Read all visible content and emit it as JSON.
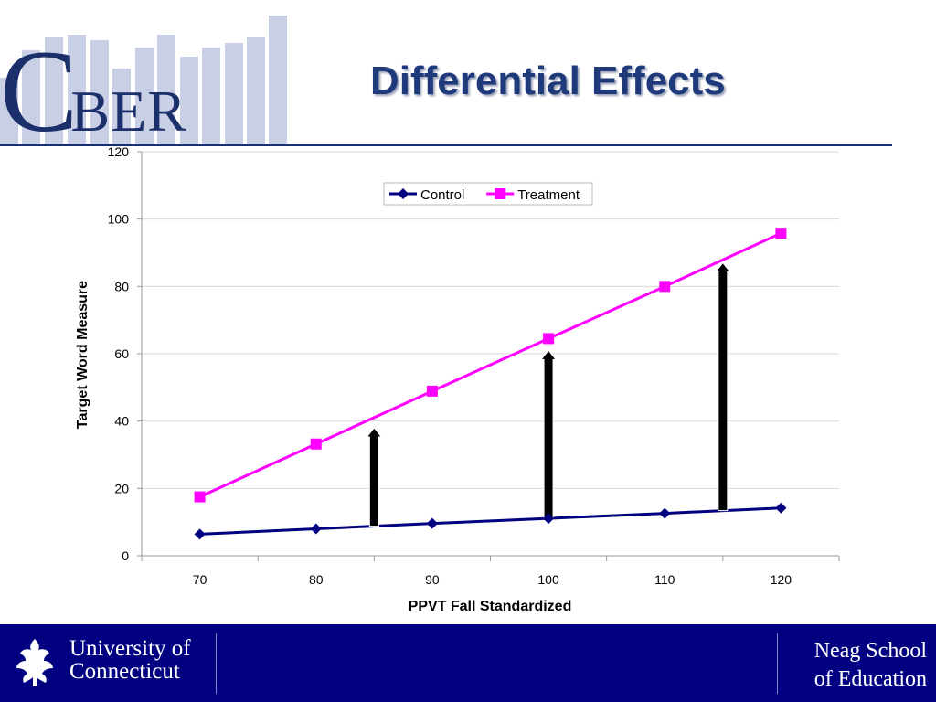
{
  "header": {
    "logo_c": "C",
    "logo_rest": "BER",
    "title": "Differential Effects"
  },
  "colors": {
    "navy": "#1b2f6b",
    "control": "#000080",
    "treatment": "#ff00ff",
    "footer_bg": "#000080"
  },
  "chart_data": {
    "type": "line",
    "x": [
      70,
      80,
      90,
      100,
      110,
      120
    ],
    "series": [
      {
        "name": "Control",
        "values": [
          6.4,
          8.0,
          9.6,
          11.1,
          12.6,
          14.2
        ],
        "color": "#000080",
        "marker": "diamond"
      },
      {
        "name": "Treatment",
        "values": [
          17.5,
          33.2,
          48.9,
          64.5,
          80.0,
          95.8
        ],
        "color": "#ff00ff",
        "marker": "square"
      }
    ],
    "xlabel": "PPVT Fall Standardized",
    "ylabel": "Target Word Measure",
    "ylim": [
      0,
      120
    ],
    "yticks": [
      0,
      20,
      40,
      60,
      80,
      100,
      120
    ],
    "xticks": [
      70,
      80,
      90,
      100,
      110,
      120
    ],
    "grid": true,
    "legend": "top-center",
    "arrows": [
      {
        "x": 85,
        "from": 8.8,
        "to": 38.0
      },
      {
        "x": 100,
        "from": 11.1,
        "to": 61.0
      },
      {
        "x": 115,
        "from": 13.4,
        "to": 87.0
      }
    ]
  },
  "footer": {
    "uconn_line1": "University of",
    "uconn_line2": "Connecticut",
    "neag_line1": "Neag School",
    "neag_line2": "of Education"
  }
}
